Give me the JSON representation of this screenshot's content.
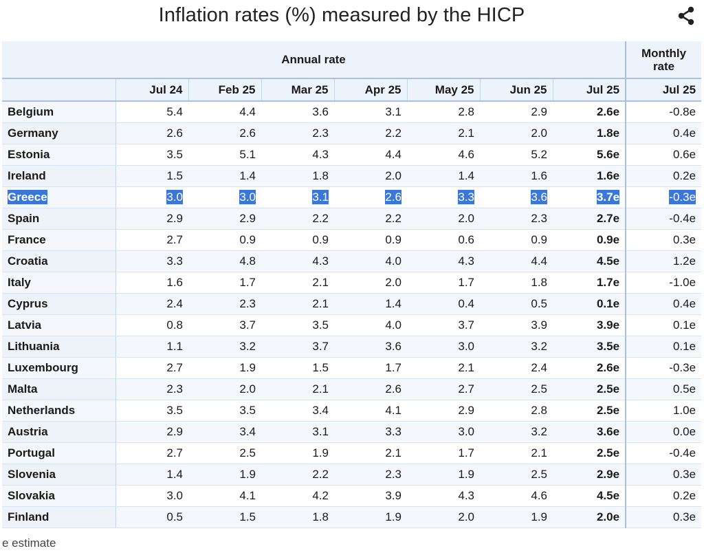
{
  "title": "Inflation rates (%) measured by the HICP",
  "share_icon": "share-icon",
  "header": {
    "annual_label": "Annual rate",
    "monthly_label_1": "Monthly",
    "monthly_label_2": "rate",
    "months": [
      "Jul 24",
      "Feb 25",
      "Mar 25",
      "Apr 25",
      "May 25",
      "Jun 25",
      "Jul 25",
      "Jul 25"
    ]
  },
  "selected_row": "Greece",
  "rows": [
    {
      "country": "Belgium",
      "v": [
        "5.4",
        "4.4",
        "3.6",
        "3.1",
        "2.8",
        "2.9",
        "2.6e",
        "-0.8e"
      ]
    },
    {
      "country": "Germany",
      "v": [
        "2.6",
        "2.6",
        "2.3",
        "2.2",
        "2.1",
        "2.0",
        "1.8e",
        "0.4e"
      ]
    },
    {
      "country": "Estonia",
      "v": [
        "3.5",
        "5.1",
        "4.3",
        "4.4",
        "4.6",
        "5.2",
        "5.6e",
        "0.6e"
      ]
    },
    {
      "country": "Ireland",
      "v": [
        "1.5",
        "1.4",
        "1.8",
        "2.0",
        "1.4",
        "1.6",
        "1.6e",
        "0.2e"
      ]
    },
    {
      "country": "Greece",
      "v": [
        "3.0",
        "3.0",
        "3.1",
        "2.6",
        "3.3",
        "3.6",
        "3.7e",
        "-0.3e"
      ]
    },
    {
      "country": "Spain",
      "v": [
        "2.9",
        "2.9",
        "2.2",
        "2.2",
        "2.0",
        "2.3",
        "2.7e",
        "-0.4e"
      ]
    },
    {
      "country": "France",
      "v": [
        "2.7",
        "0.9",
        "0.9",
        "0.9",
        "0.6",
        "0.9",
        "0.9e",
        "0.3e"
      ]
    },
    {
      "country": "Croatia",
      "v": [
        "3.3",
        "4.8",
        "4.3",
        "4.0",
        "4.3",
        "4.4",
        "4.5e",
        "1.2e"
      ]
    },
    {
      "country": "Italy",
      "v": [
        "1.6",
        "1.7",
        "2.1",
        "2.0",
        "1.7",
        "1.8",
        "1.7e",
        "-1.0e"
      ]
    },
    {
      "country": "Cyprus",
      "v": [
        "2.4",
        "2.3",
        "2.1",
        "1.4",
        "0.4",
        "0.5",
        "0.1e",
        "0.4e"
      ]
    },
    {
      "country": "Latvia",
      "v": [
        "0.8",
        "3.7",
        "3.5",
        "4.0",
        "3.7",
        "3.9",
        "3.9e",
        "0.1e"
      ]
    },
    {
      "country": "Lithuania",
      "v": [
        "1.1",
        "3.2",
        "3.7",
        "3.6",
        "3.0",
        "3.2",
        "3.5e",
        "0.1e"
      ]
    },
    {
      "country": "Luxembourg",
      "v": [
        "2.7",
        "1.9",
        "1.5",
        "1.7",
        "2.1",
        "2.4",
        "2.6e",
        "-0.3e"
      ]
    },
    {
      "country": "Malta",
      "v": [
        "2.3",
        "2.0",
        "2.1",
        "2.6",
        "2.7",
        "2.5",
        "2.5e",
        "0.5e"
      ]
    },
    {
      "country": "Netherlands",
      "v": [
        "3.5",
        "3.5",
        "3.4",
        "4.1",
        "2.9",
        "2.8",
        "2.5e",
        "1.0e"
      ]
    },
    {
      "country": "Austria",
      "v": [
        "2.9",
        "3.4",
        "3.1",
        "3.3",
        "3.0",
        "3.2",
        "3.6e",
        "0.0e"
      ]
    },
    {
      "country": "Portugal",
      "v": [
        "2.7",
        "2.5",
        "1.9",
        "2.1",
        "1.7",
        "2.1",
        "2.5e",
        "-0.4e"
      ]
    },
    {
      "country": "Slovenia",
      "v": [
        "1.4",
        "1.9",
        "2.2",
        "2.3",
        "1.9",
        "2.5",
        "2.9e",
        "0.3e"
      ]
    },
    {
      "country": "Slovakia",
      "v": [
        "3.0",
        "4.1",
        "4.2",
        "3.9",
        "4.3",
        "4.6",
        "4.5e",
        "0.2e"
      ]
    },
    {
      "country": "Finland",
      "v": [
        "0.5",
        "1.5",
        "1.8",
        "1.9",
        "2.0",
        "1.9",
        "2.0e",
        "0.3e"
      ]
    }
  ],
  "footnote": "e estimate",
  "colors": {
    "selection": "#3a77d8",
    "header_bg": "#edf3fa",
    "rule": "#a9c0e0"
  }
}
